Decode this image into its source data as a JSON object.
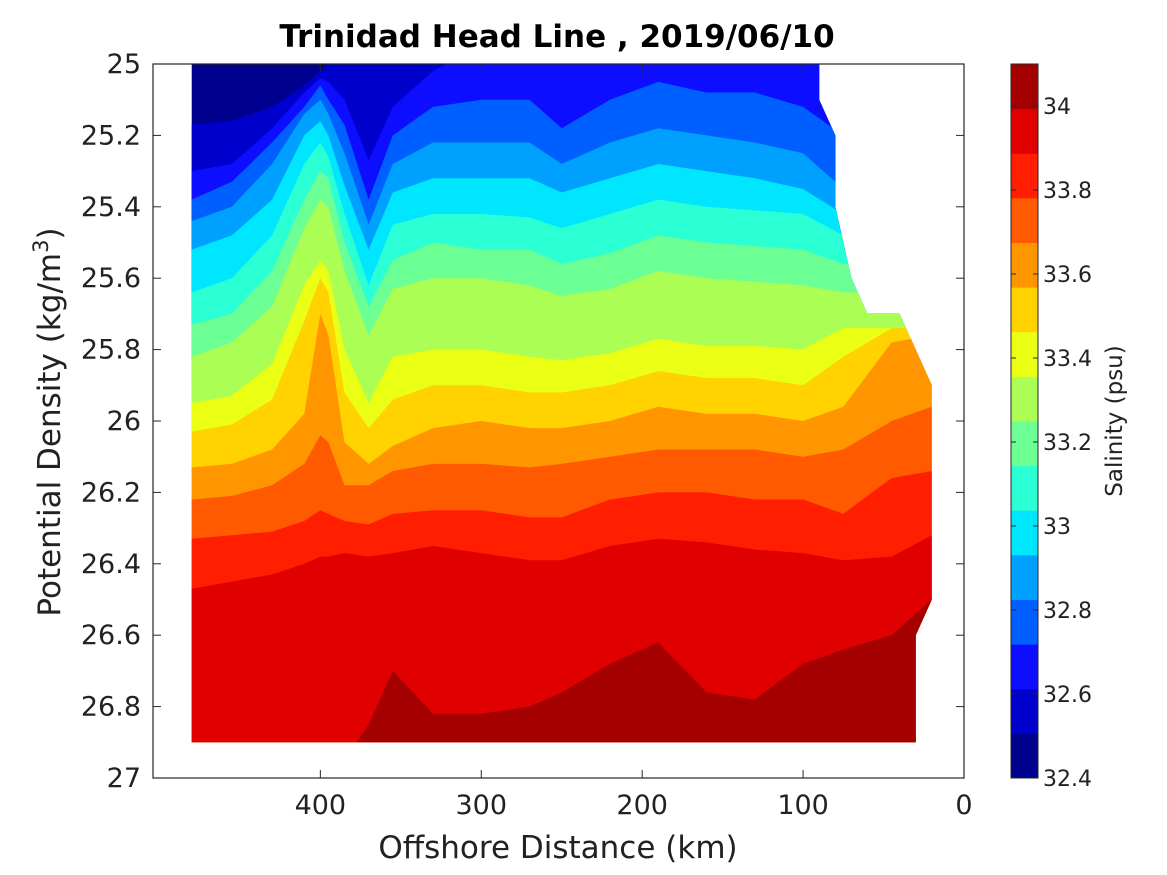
{
  "chart_data": {
    "type": "contour",
    "title": "Trinidad Head Line , 2019/06/10",
    "xlabel": "Offshore Distance (km)",
    "ylabel_prefix": "Potential Density (kg/m",
    "ylabel_sup": "3",
    "ylabel_suffix": ")",
    "colorbar_label": "Salinity (psu)",
    "x_axis": {
      "reversed": true,
      "lim": [
        0,
        504
      ],
      "ticks": [
        "400",
        "300",
        "200",
        "100",
        "0"
      ],
      "tick_values": [
        400,
        300,
        200,
        100,
        0
      ]
    },
    "y_axis": {
      "reversed": true,
      "lim": [
        25,
        27
      ],
      "ticks": [
        "25",
        "25.2",
        "25.4",
        "25.6",
        "25.8",
        "26",
        "26.2",
        "26.4",
        "26.6",
        "26.8",
        "27"
      ],
      "tick_values": [
        25,
        25.2,
        25.4,
        25.6,
        25.8,
        26,
        26.2,
        26.4,
        26.6,
        26.8,
        27
      ]
    },
    "colorbar": {
      "range": [
        32.4,
        34.1
      ],
      "ticks": [
        "32.4",
        "32.6",
        "32.8",
        "33",
        "33.2",
        "33.4",
        "33.6",
        "33.8",
        "34"
      ],
      "tick_values": [
        32.4,
        32.6,
        32.8,
        33.0,
        33.2,
        33.4,
        33.6,
        33.8,
        34.0
      ],
      "colors": [
        "#00008f",
        "#0000cd",
        "#0d0dff",
        "#0060ff",
        "#00a0ff",
        "#00e6ff",
        "#2bffd4",
        "#6bff94",
        "#abff54",
        "#ebff14",
        "#ffd200",
        "#ff9600",
        "#ff5a00",
        "#ff1e00",
        "#e00000",
        "#a50000"
      ]
    },
    "levels": [
      32.5,
      32.6,
      32.7,
      32.8,
      32.9,
      33.0,
      33.1,
      33.2,
      33.3,
      33.4,
      33.5,
      33.6,
      33.7,
      33.8,
      33.9,
      34.0
    ],
    "x": [
      480,
      455,
      430,
      410,
      400,
      395,
      385,
      370,
      355,
      330,
      300,
      270,
      250,
      220,
      190,
      160,
      130,
      100,
      75,
      45,
      20
    ],
    "data_extent": {
      "x_range": [
        20,
        480
      ],
      "top_right_cutoff": [
        [
          90,
          25.0
        ],
        [
          90,
          25.1
        ],
        [
          80,
          25.2
        ],
        [
          80,
          25.4
        ],
        [
          70,
          25.6
        ],
        [
          60,
          25.7
        ],
        [
          40,
          25.7
        ],
        [
          20,
          25.9
        ]
      ],
      "bottom_right_cutoff": [
        [
          20,
          26.5
        ],
        [
          30,
          26.6
        ],
        [
          30,
          26.9
        ]
      ],
      "bottom": 26.9
    },
    "isolines": [
      {
        "level": 32.5,
        "y": [
          25.17,
          25.16,
          25.12,
          25.06,
          25.02,
          25.0,
          24.98,
          24.92,
          24.95,
          24.9,
          24.9,
          24.9,
          24.9,
          24.9,
          24.9,
          24.9,
          24.9,
          24.9,
          24.9,
          24.9,
          24.9
        ]
      },
      {
        "level": 32.6,
        "y": [
          25.3,
          25.28,
          25.18,
          25.08,
          25.04,
          25.05,
          25.1,
          25.27,
          25.12,
          25.02,
          24.95,
          24.95,
          24.95,
          24.95,
          24.95,
          24.95,
          24.95,
          24.95,
          24.95,
          24.95,
          24.95
        ]
      },
      {
        "level": 32.7,
        "y": [
          25.38,
          25.33,
          25.22,
          25.12,
          25.06,
          25.1,
          25.17,
          25.38,
          25.2,
          25.12,
          25.1,
          25.1,
          25.18,
          25.1,
          25.05,
          25.08,
          25.08,
          25.12,
          25.2,
          25.2,
          25.2
        ]
      },
      {
        "level": 32.8,
        "y": [
          25.44,
          25.4,
          25.28,
          25.14,
          25.1,
          25.14,
          25.25,
          25.45,
          25.28,
          25.22,
          25.22,
          25.22,
          25.28,
          25.22,
          25.18,
          25.2,
          25.22,
          25.25,
          25.35,
          25.35,
          25.35
        ]
      },
      {
        "level": 32.9,
        "y": [
          25.52,
          25.48,
          25.38,
          25.2,
          25.16,
          25.2,
          25.34,
          25.52,
          25.36,
          25.32,
          25.32,
          25.32,
          25.36,
          25.32,
          25.28,
          25.3,
          25.32,
          25.35,
          25.42,
          25.42,
          25.42
        ]
      },
      {
        "level": 33.0,
        "y": [
          25.64,
          25.6,
          25.48,
          25.28,
          25.22,
          25.26,
          25.42,
          25.62,
          25.45,
          25.42,
          25.42,
          25.43,
          25.46,
          25.42,
          25.38,
          25.4,
          25.41,
          25.42,
          25.48,
          25.48,
          25.48
        ]
      },
      {
        "level": 33.1,
        "y": [
          25.73,
          25.7,
          25.58,
          25.38,
          25.3,
          25.32,
          25.5,
          25.68,
          25.55,
          25.5,
          25.52,
          25.52,
          25.56,
          25.53,
          25.48,
          25.5,
          25.51,
          25.52,
          25.56,
          25.56,
          25.56
        ]
      },
      {
        "level": 33.2,
        "y": [
          25.82,
          25.78,
          25.68,
          25.46,
          25.38,
          25.4,
          25.58,
          25.76,
          25.63,
          25.6,
          25.6,
          25.62,
          25.65,
          25.63,
          25.58,
          25.6,
          25.61,
          25.62,
          25.64,
          25.64,
          25.64
        ]
      },
      {
        "level": 33.3,
        "y": [
          25.88,
          25.86,
          25.76,
          25.54,
          25.45,
          25.48,
          25.66,
          25.86,
          25.72,
          25.7,
          25.7,
          25.72,
          25.74,
          25.72,
          25.68,
          25.7,
          25.71,
          25.72,
          25.72,
          25.72,
          25.72
        ]
      },
      {
        "level": 33.4,
        "y": [
          25.95,
          25.93,
          25.84,
          25.62,
          25.55,
          25.58,
          25.8,
          25.95,
          25.82,
          25.8,
          25.8,
          25.82,
          25.83,
          25.81,
          25.77,
          25.79,
          25.79,
          25.8,
          25.74,
          25.74,
          25.74
        ]
      },
      {
        "level": 33.5,
        "y": [
          26.03,
          26.01,
          25.94,
          25.72,
          25.6,
          25.64,
          25.92,
          26.02,
          25.94,
          25.9,
          25.9,
          25.92,
          25.92,
          25.9,
          25.86,
          25.88,
          25.88,
          25.9,
          25.82,
          25.74,
          25.74
        ]
      },
      {
        "level": 33.6,
        "y": [
          26.13,
          26.12,
          26.08,
          25.98,
          25.7,
          25.76,
          26.06,
          26.12,
          26.07,
          26.02,
          26.0,
          26.02,
          26.02,
          26.0,
          25.96,
          25.98,
          25.98,
          26.0,
          25.96,
          25.78,
          25.76
        ]
      },
      {
        "level": 33.7,
        "y": [
          26.22,
          26.21,
          26.18,
          26.12,
          26.04,
          26.06,
          26.18,
          26.18,
          26.14,
          26.12,
          26.12,
          26.13,
          26.12,
          26.1,
          26.08,
          26.08,
          26.08,
          26.1,
          26.08,
          26.0,
          25.96
        ]
      },
      {
        "level": 33.8,
        "y": [
          26.33,
          26.32,
          26.31,
          26.28,
          26.25,
          26.26,
          26.28,
          26.29,
          26.26,
          26.25,
          26.25,
          26.27,
          26.27,
          26.22,
          26.2,
          26.2,
          26.22,
          26.22,
          26.26,
          26.16,
          26.14
        ]
      },
      {
        "level": 33.9,
        "y": [
          26.47,
          26.45,
          26.43,
          26.4,
          26.38,
          26.38,
          26.37,
          26.38,
          26.37,
          26.35,
          26.37,
          26.39,
          26.39,
          26.35,
          26.33,
          26.34,
          26.36,
          26.37,
          26.39,
          26.38,
          26.32
        ]
      },
      {
        "level": 34.0,
        "y": [
          27.0,
          27.0,
          27.0,
          27.0,
          27.0,
          27.0,
          26.95,
          26.85,
          26.7,
          26.82,
          26.82,
          26.8,
          26.76,
          26.68,
          26.62,
          26.76,
          26.78,
          26.68,
          26.64,
          26.6,
          26.5
        ]
      }
    ]
  }
}
